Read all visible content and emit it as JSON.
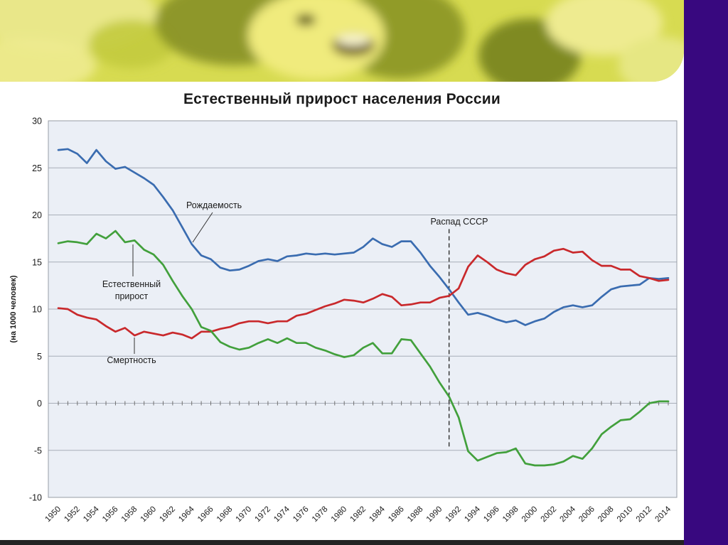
{
  "slide": {
    "title": "Естественный прирост населения России"
  },
  "colors": {
    "birth": "#3a6cb0",
    "death": "#c9292c",
    "natural": "#42a03c",
    "purple_strip": "#38087f",
    "plot_bg": "#ebeff6",
    "banner_base": "#d7db51"
  },
  "chart_data": {
    "type": "line",
    "title": "Естественный прирост населения России",
    "xlabel": "",
    "ylabel": "(на 1000 человек)",
    "ylim": [
      -10,
      30
    ],
    "y_ticks": [
      30,
      25,
      20,
      15,
      10,
      5,
      0,
      -5,
      -10
    ],
    "x_ticks": [
      1950,
      1952,
      1954,
      1956,
      1958,
      1960,
      1962,
      1964,
      1966,
      1968,
      1970,
      1972,
      1974,
      1976,
      1978,
      1980,
      1982,
      1984,
      1986,
      1988,
      1990,
      1992,
      1994,
      1996,
      1998,
      2000,
      2002,
      2004,
      2006,
      2008,
      2010,
      2012,
      2014
    ],
    "x": [
      1950,
      1951,
      1952,
      1953,
      1954,
      1955,
      1956,
      1957,
      1958,
      1959,
      1960,
      1961,
      1962,
      1963,
      1964,
      1965,
      1966,
      1967,
      1968,
      1969,
      1970,
      1971,
      1972,
      1973,
      1974,
      1975,
      1976,
      1977,
      1978,
      1979,
      1980,
      1981,
      1982,
      1983,
      1984,
      1985,
      1986,
      1987,
      1988,
      1989,
      1990,
      1991,
      1992,
      1993,
      1994,
      1995,
      1996,
      1997,
      1998,
      1999,
      2000,
      2001,
      2002,
      2003,
      2004,
      2005,
      2006,
      2007,
      2008,
      2009,
      2010,
      2011,
      2012,
      2013,
      2014
    ],
    "series": [
      {
        "key": "birth",
        "name": "Рождаемость",
        "color": "#3a6cb0",
        "values": [
          26.9,
          27.0,
          26.5,
          25.5,
          26.9,
          25.7,
          24.9,
          25.1,
          24.5,
          23.9,
          23.2,
          21.9,
          20.5,
          18.7,
          16.9,
          15.7,
          15.3,
          14.4,
          14.1,
          14.2,
          14.6,
          15.1,
          15.3,
          15.1,
          15.6,
          15.7,
          15.9,
          15.8,
          15.9,
          15.8,
          15.9,
          16.0,
          16.6,
          17.5,
          16.9,
          16.6,
          17.2,
          17.2,
          16.0,
          14.6,
          13.4,
          12.1,
          10.7,
          9.4,
          9.6,
          9.3,
          8.9,
          8.6,
          8.8,
          8.3,
          8.7,
          9.0,
          9.7,
          10.2,
          10.4,
          10.2,
          10.4,
          11.3,
          12.1,
          12.4,
          12.5,
          12.6,
          13.3,
          13.2,
          13.3
        ]
      },
      {
        "key": "death",
        "name": "Смертность",
        "color": "#c9292c",
        "values": [
          10.1,
          10.0,
          9.4,
          9.1,
          8.9,
          8.2,
          7.6,
          8.0,
          7.2,
          7.6,
          7.4,
          7.2,
          7.5,
          7.3,
          6.9,
          7.6,
          7.6,
          7.9,
          8.1,
          8.5,
          8.7,
          8.7,
          8.5,
          8.7,
          8.7,
          9.3,
          9.5,
          9.9,
          10.3,
          10.6,
          11.0,
          10.9,
          10.7,
          11.1,
          11.6,
          11.3,
          10.4,
          10.5,
          10.7,
          10.7,
          11.2,
          11.4,
          12.2,
          14.5,
          15.7,
          15.0,
          14.2,
          13.8,
          13.6,
          14.7,
          15.3,
          15.6,
          16.2,
          16.4,
          16.0,
          16.1,
          15.2,
          14.6,
          14.6,
          14.2,
          14.2,
          13.5,
          13.3,
          13.0,
          13.1
        ]
      },
      {
        "key": "natural",
        "name": "Естественный прирост",
        "color": "#42a03c",
        "values": [
          17.0,
          17.2,
          17.1,
          16.9,
          18.0,
          17.5,
          18.3,
          17.1,
          17.3,
          16.3,
          15.8,
          14.7,
          13.0,
          11.4,
          10.0,
          8.1,
          7.7,
          6.5,
          6.0,
          5.7,
          5.9,
          6.4,
          6.8,
          6.4,
          6.9,
          6.4,
          6.4,
          5.9,
          5.6,
          5.2,
          4.9,
          5.1,
          5.9,
          6.4,
          5.3,
          5.3,
          6.8,
          6.7,
          5.3,
          3.9,
          2.2,
          0.7,
          -1.5,
          -5.1,
          -6.1,
          -5.7,
          -5.3,
          -5.2,
          -4.8,
          -6.4,
          -6.6,
          -6.6,
          -6.5,
          -6.2,
          -5.6,
          -5.9,
          -4.8,
          -3.3,
          -2.5,
          -1.8,
          -1.7,
          -0.9,
          0.0,
          0.2,
          0.2
        ]
      }
    ],
    "annotations": {
      "birth": "Рождаемость",
      "natural_line1": "Естественный",
      "natural_line2": "прирост",
      "death": "Смертность",
      "ussr": {
        "label": "Распад СССР",
        "x": 1991
      }
    },
    "grid": true,
    "legend_position": "none"
  }
}
